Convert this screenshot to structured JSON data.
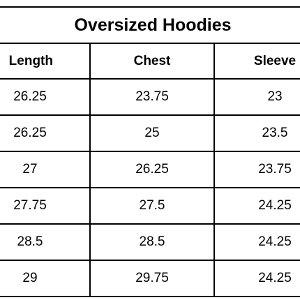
{
  "title": "Oversized Hoodies",
  "table": {
    "header": [
      "Length",
      "Chest",
      "Sleeve"
    ],
    "rows": [
      [
        26.25,
        23.75,
        23
      ],
      [
        26.25,
        25,
        23.5
      ],
      [
        27,
        26.25,
        23.75
      ],
      [
        27.75,
        27.5,
        24.25
      ],
      [
        28.5,
        28.5,
        24.25
      ],
      [
        29,
        29.75,
        24.25
      ]
    ]
  }
}
